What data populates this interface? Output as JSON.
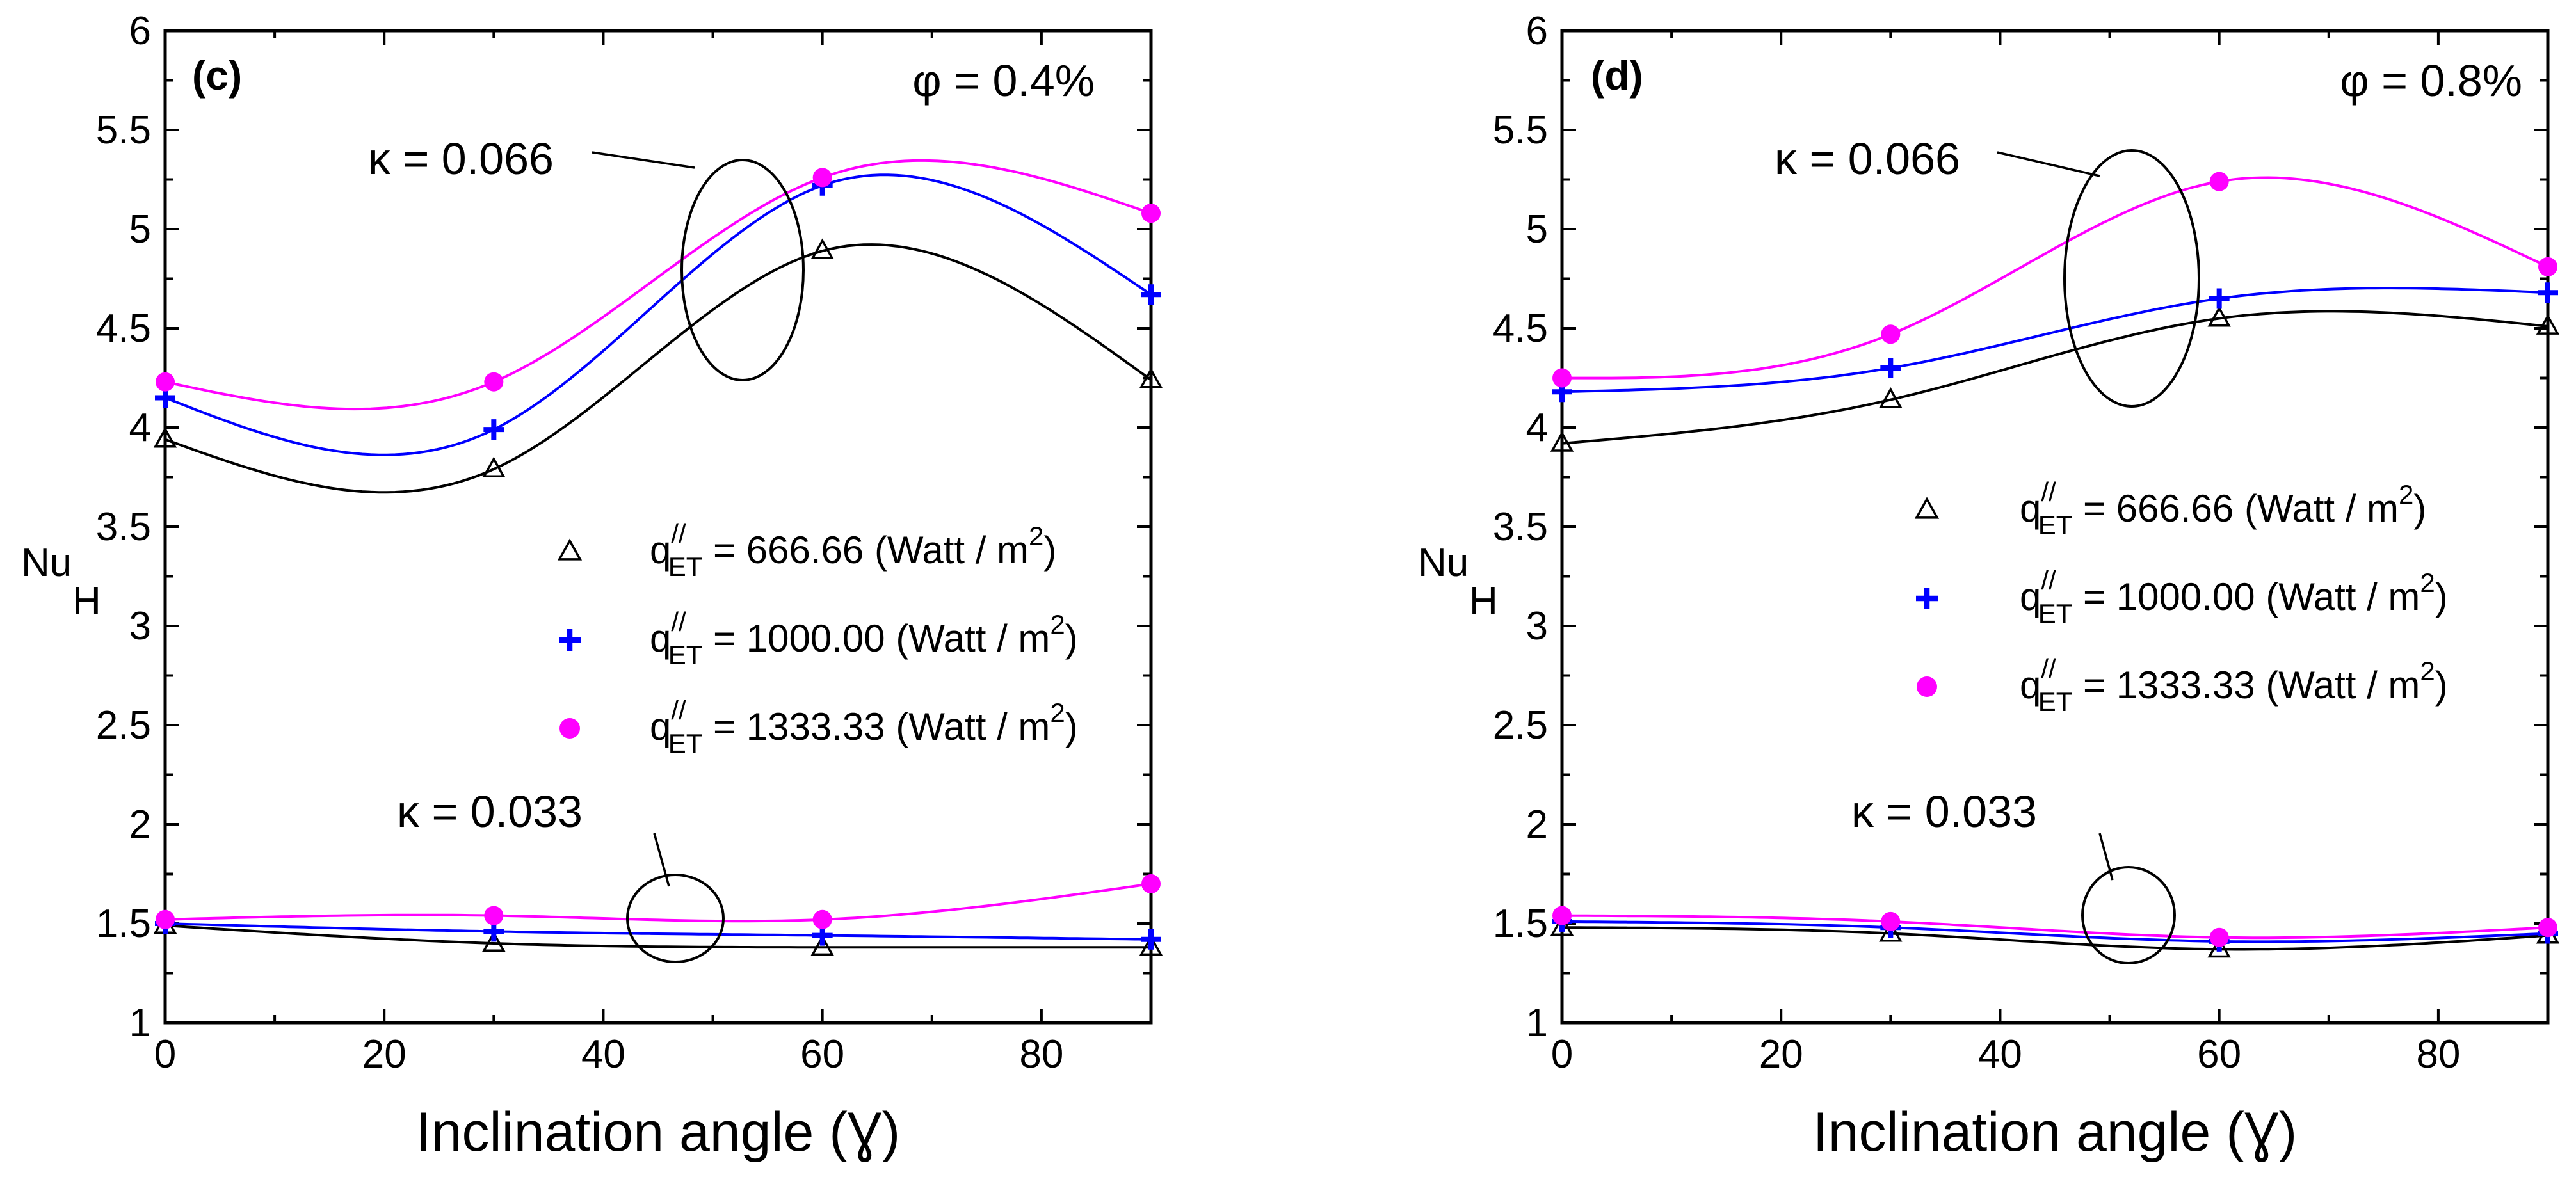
{
  "colors": {
    "s1": "#000000",
    "s2": "#0000ff",
    "s3": "#ff00ff"
  },
  "chart_data": [
    {
      "type": "line",
      "panel_label": "(c)",
      "phi_label": "φ = 0.4%",
      "xlabel": "Inclination angle (Ɣ)",
      "ylabel": "Nu",
      "ylabel_sub": "H",
      "xlim": [
        0,
        90
      ],
      "ylim": [
        1,
        6
      ],
      "xticks": [
        0,
        20,
        40,
        60,
        80
      ],
      "xtick_labels": [
        "0",
        "20",
        "40",
        "60",
        "80"
      ],
      "yticks": [
        1,
        1.5,
        2,
        2.5,
        3,
        3.5,
        4,
        4.5,
        5,
        5.5,
        6
      ],
      "ytick_labels": [
        "1",
        "1.5",
        "2",
        "2.5",
        "3",
        "3.5",
        "4",
        "4.5",
        "5",
        "5.5",
        "6"
      ],
      "x": [
        0,
        30,
        60,
        90
      ],
      "legend": [
        {
          "marker": "triangle",
          "prefix": "q",
          "sup": "//",
          "sub": "ET",
          "text": " = 666.66 (Watt / m",
          "unit_sup": "2",
          "close": ")"
        },
        {
          "marker": "plus",
          "prefix": "q",
          "sup": "//",
          "sub": "ET",
          "text": " = 1000.00 (Watt / m",
          "unit_sup": "2",
          "close": ")"
        },
        {
          "marker": "circle",
          "prefix": "q",
          "sup": "//",
          "sub": "ET",
          "text": " = 1333.33 (Watt / m",
          "unit_sup": "2",
          "close": ")"
        }
      ],
      "annotations": [
        {
          "text": "κ = 0.066"
        },
        {
          "text": "κ = 0.033"
        }
      ],
      "series": [
        {
          "name": "q''ET = 666.66 (Watt / m2), κ = 0.066",
          "marker": "triangle",
          "color": "#000000",
          "values": [
            3.94,
            3.79,
            4.89,
            4.24
          ]
        },
        {
          "name": "q''ET = 1000.00 (Watt / m2), κ = 0.066",
          "marker": "plus",
          "color": "#0000ff",
          "values": [
            4.15,
            3.99,
            5.22,
            4.67
          ]
        },
        {
          "name": "q''ET = 1333.33 (Watt / m2), κ = 0.066",
          "marker": "circle",
          "color": "#ff00ff",
          "values": [
            4.23,
            4.23,
            5.26,
            5.08
          ]
        },
        {
          "name": "q''ET = 666.66 (Watt / m2), κ = 0.033",
          "marker": "triangle",
          "color": "#000000",
          "values": [
            1.49,
            1.4,
            1.38,
            1.38
          ]
        },
        {
          "name": "q''ET = 1000.00 (Watt / m2), κ = 0.033",
          "marker": "plus",
          "color": "#0000ff",
          "values": [
            1.5,
            1.46,
            1.44,
            1.42
          ]
        },
        {
          "name": "q''ET = 1333.33 (Watt / m2), κ = 0.033",
          "marker": "circle",
          "color": "#ff00ff",
          "values": [
            1.52,
            1.54,
            1.52,
            1.7
          ]
        }
      ]
    },
    {
      "type": "line",
      "panel_label": "(d)",
      "phi_label": "φ = 0.8%",
      "xlabel": "Inclination angle (Ɣ)",
      "ylabel": "Nu",
      "ylabel_sub": "H",
      "xlim": [
        0,
        90
      ],
      "ylim": [
        1,
        6
      ],
      "xticks": [
        0,
        20,
        40,
        60,
        80
      ],
      "xtick_labels": [
        "0",
        "20",
        "40",
        "60",
        "80"
      ],
      "yticks": [
        1,
        1.5,
        2,
        2.5,
        3,
        3.5,
        4,
        4.5,
        5,
        5.5,
        6
      ],
      "ytick_labels": [
        "1",
        "1.5",
        "2",
        "2.5",
        "3",
        "3.5",
        "4",
        "4.5",
        "5",
        "5.5",
        "6"
      ],
      "x": [
        0,
        30,
        60,
        90
      ],
      "legend": [
        {
          "marker": "triangle",
          "prefix": "q",
          "sup": "//",
          "sub": "ET",
          "text": " = 666.66 (Watt / m",
          "unit_sup": "2",
          "close": ")"
        },
        {
          "marker": "plus",
          "prefix": "q",
          "sup": "//",
          "sub": "ET",
          "text": " = 1000.00 (Watt / m",
          "unit_sup": "2",
          "close": ")"
        },
        {
          "marker": "circle",
          "prefix": "q",
          "sup": "//",
          "sub": "ET",
          "text": " = 1333.33 (Watt / m",
          "unit_sup": "2",
          "close": ")"
        }
      ],
      "annotations": [
        {
          "text": "κ = 0.066"
        },
        {
          "text": "κ = 0.033"
        }
      ],
      "series": [
        {
          "name": "q''ET = 666.66 (Watt / m2), κ = 0.066",
          "marker": "triangle",
          "color": "#000000",
          "values": [
            3.92,
            4.14,
            4.55,
            4.51
          ]
        },
        {
          "name": "q''ET = 1000.00 (Watt / m2), κ = 0.066",
          "marker": "plus",
          "color": "#0000ff",
          "values": [
            4.18,
            4.3,
            4.65,
            4.68
          ]
        },
        {
          "name": "q''ET = 1333.33 (Watt / m2), κ = 0.066",
          "marker": "circle",
          "color": "#ff00ff",
          "values": [
            4.25,
            4.47,
            5.24,
            4.81
          ]
        },
        {
          "name": "q''ET = 666.66 (Watt / m2), κ = 0.033",
          "marker": "triangle",
          "color": "#000000",
          "values": [
            1.48,
            1.45,
            1.37,
            1.44
          ]
        },
        {
          "name": "q''ET = 1000.00 (Watt / m2), κ = 0.033",
          "marker": "plus",
          "color": "#0000ff",
          "values": [
            1.51,
            1.48,
            1.41,
            1.45
          ]
        },
        {
          "name": "q''ET = 1333.33 (Watt / m2), κ = 0.033",
          "marker": "circle",
          "color": "#ff00ff",
          "values": [
            1.54,
            1.51,
            1.43,
            1.48
          ]
        }
      ]
    }
  ]
}
